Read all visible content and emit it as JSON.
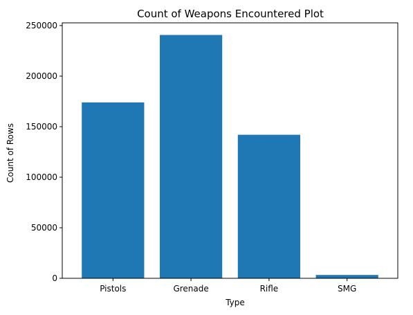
{
  "chart_data": {
    "type": "bar",
    "title": "Count of Weapons Encountered Plot",
    "xlabel": "Type",
    "ylabel": "Count of Rows",
    "categories": [
      "Pistols",
      "Grenade",
      "Rifle",
      "SMG"
    ],
    "values": [
      174000,
      240700,
      142000,
      3300
    ],
    "ylim": [
      0,
      252700
    ],
    "yticks": [
      0,
      50000,
      100000,
      150000,
      200000,
      250000
    ],
    "bar_color": "#1f77b4",
    "grid": false,
    "legend": "none"
  }
}
